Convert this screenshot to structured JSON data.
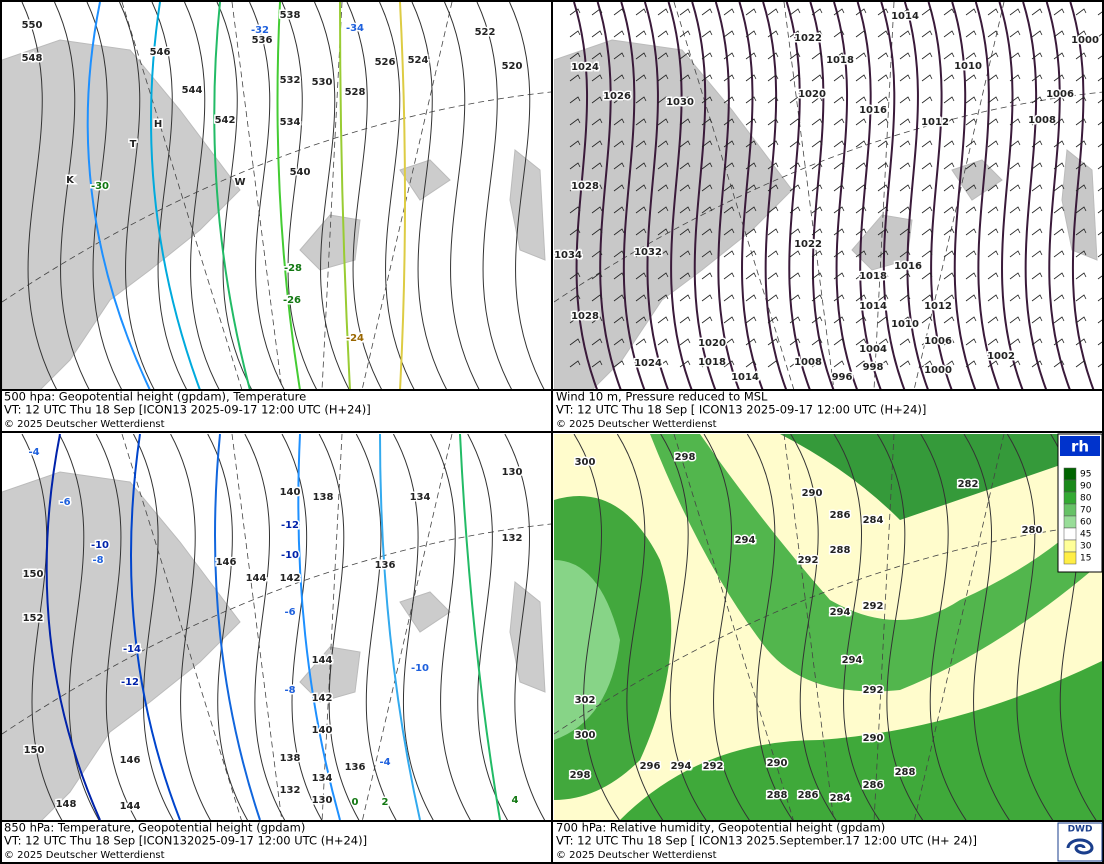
{
  "panels": [
    {
      "caption": {
        "title": "500 hpa: Geopotential height (gpdam), Temperature",
        "valid_time": "VT: 12 UTC Thu  18 Sep [ICON13 2025-09-17 12:00 UTC  (H+24)]",
        "copyright": "© 2025 Deutscher Wetterdienst"
      },
      "labels": [
        "550",
        "548",
        "546",
        "544",
        "542",
        "540",
        "538",
        "536",
        "534",
        "532",
        "530",
        "528",
        "526",
        "524",
        "522",
        "520",
        "-32",
        "-34",
        "-30",
        "-28",
        "-26",
        "-24",
        "H",
        "T",
        "K",
        "W"
      ]
    },
    {
      "caption": {
        "title": "Wind 10 m, Pressure reduced to MSL",
        "valid_time": "VT: 12 UTC Thu  18 Sep [ ICON13 2025-09-17 12:00 UTC (H+24)]",
        "copyright": "© 2025 Deutscher Wetterdienst"
      },
      "labels": [
        "1024",
        "1026",
        "1030",
        "1022",
        "1018",
        "1014",
        "1010",
        "1006",
        "1000",
        "1020",
        "1016",
        "1012",
        "1008",
        "1028",
        "1032",
        "1034",
        "1022",
        "1018",
        "1016",
        "1014",
        "1012",
        "1010",
        "1006",
        "1002",
        "1000",
        "1004",
        "998",
        "996",
        "1008",
        "1014",
        "1018",
        "1020",
        "1024",
        "1028"
      ]
    },
    {
      "caption": {
        "title": "850 hPa:  Temperature, Geopotential height (gpdam)",
        "valid_time": "VT: 12 UTC Thu  18 Sep [ICON132025-09-17 12:00 UTC (H+24)]",
        "copyright": "© 2025 Deutscher Wetterdienst"
      },
      "labels": [
        "-4",
        "-6",
        "-8",
        "-10",
        "150",
        "152",
        "-14",
        "-12",
        "140",
        "138",
        "-12",
        "-10",
        "142",
        "144",
        "146",
        "-6",
        "-8",
        "144",
        "142",
        "140",
        "138",
        "136",
        "134",
        "132",
        "130",
        "0",
        "2",
        "4",
        "-4",
        "-10",
        "134",
        "136",
        "132",
        "130",
        "146",
        "144",
        "148",
        "150"
      ]
    },
    {
      "caption": {
        "title": "700 hPa:  Relative humidity, Geopotential height (gpdam)",
        "valid_time": "VT: 12 UTC Thu  18 Sep [ ICON13  2025.September.17 12:00 UTC (H+ 24)]",
        "copyright": "© 2025 Deutscher Wetterdienst"
      },
      "labels": [
        "298",
        "294",
        "292",
        "290",
        "286",
        "288",
        "284",
        "282",
        "280",
        "294",
        "292",
        "294",
        "292",
        "290",
        "290",
        "292",
        "294",
        "296",
        "288",
        "286",
        "284",
        "286",
        "288",
        "302",
        "300",
        "298",
        "300"
      ]
    }
  ],
  "legend": {
    "title": "rh",
    "levels": [
      95,
      90,
      80,
      70,
      60,
      45,
      30,
      15
    ]
  },
  "logo": "DWD"
}
